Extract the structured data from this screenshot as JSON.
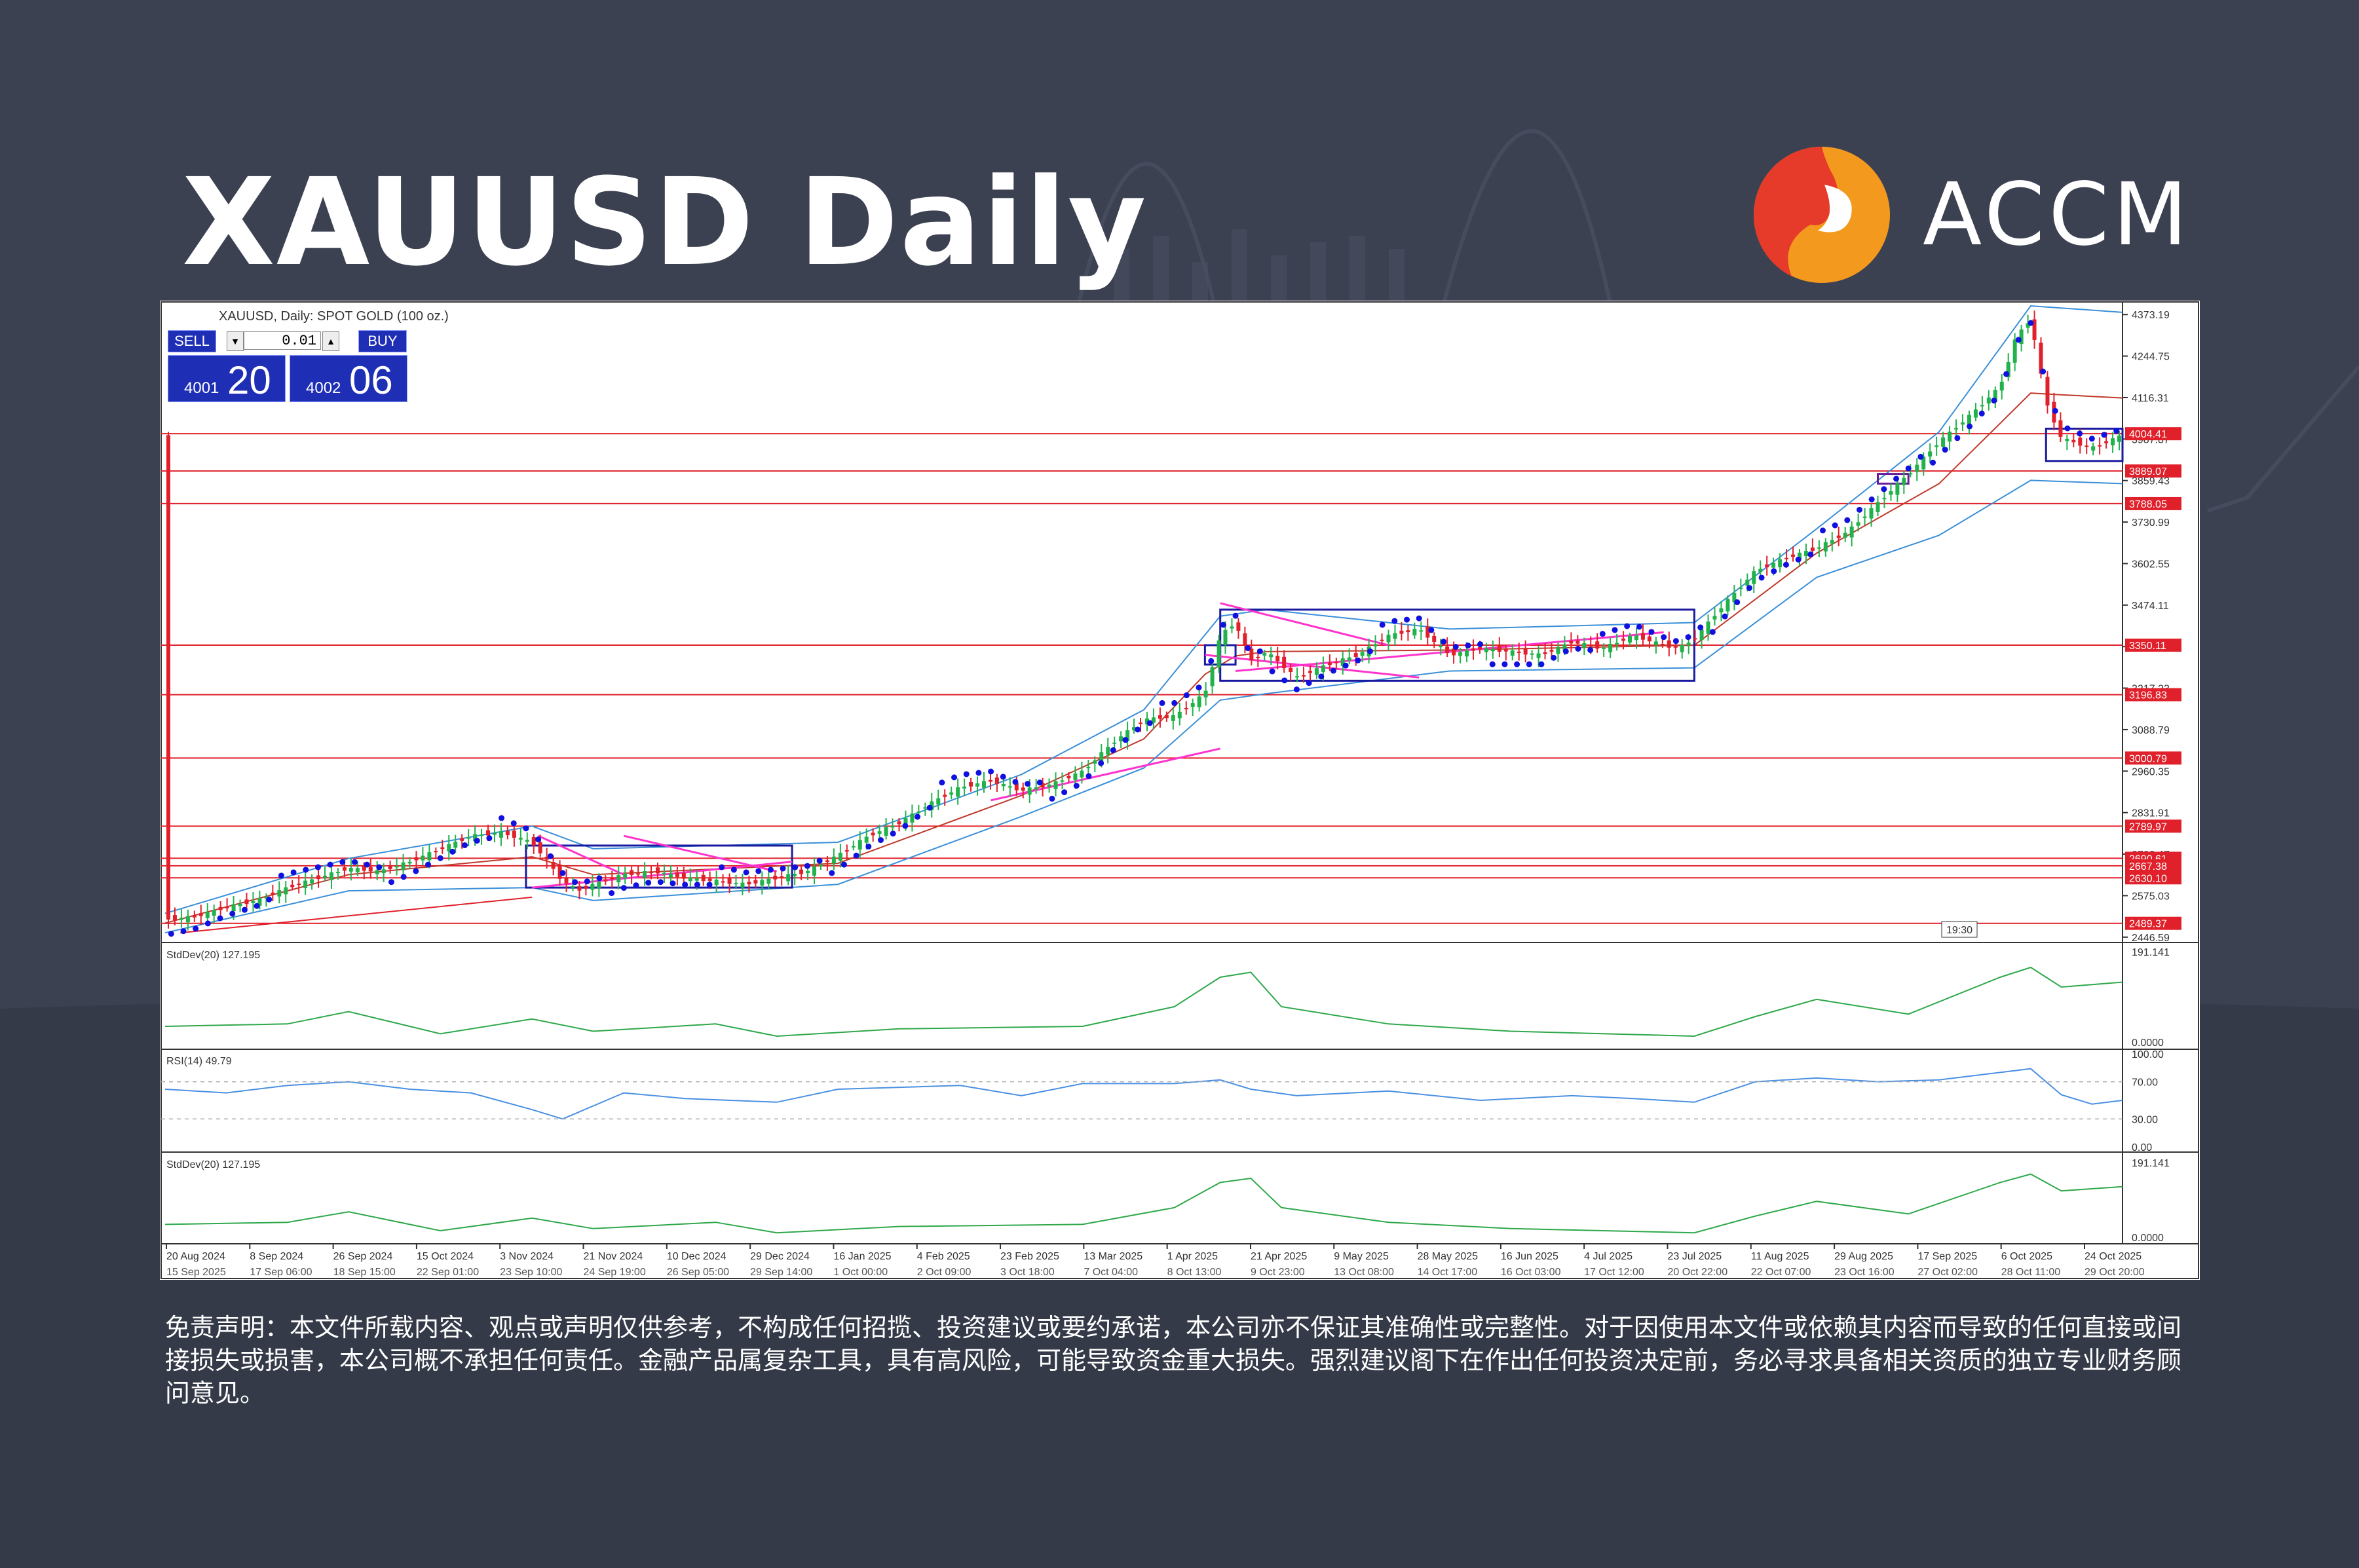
{
  "page": {
    "title": "XAUUSD Daily",
    "brand": "ACCM",
    "disclaimer": "免责声明：本文件所载内容、观点或声明仅供参考，不构成任何招揽、投资建议或要约承诺，本公司亦不保证其准确性或完整性。对于因使用本文件或依赖其内容而导致的任何直接或间接损失或损害，本公司概不承担任何责任。金融产品属复杂工具，具有高风险，可能导致资金重大损失。强烈建议阁下在作出任何投资决定前，务必寻求具备相关资质的独立专业财务顾问意见。"
  },
  "colors": {
    "background": "#3c4152",
    "logo_red": "#e63a2a",
    "logo_orange": "#f39a1e",
    "sell_buy_bg": "#1f2fb5",
    "level_line": "#e0202a",
    "bollinger": "#3a8fd9",
    "sar": "#1010e0",
    "trend_lines": "#ff33cc",
    "rsi": "#4a90e2",
    "stddev": "#2ea84a",
    "bull_candle": "#21b24b",
    "bear_candle": "#e0202a"
  },
  "trade_panel": {
    "symbol_header": "XAUUSD, Daily:  SPOT GOLD (100 oz.)",
    "sell_label": "SELL",
    "buy_label": "BUY",
    "lot": "0.01",
    "sell_price_main": "4001",
    "sell_price_big": "20",
    "buy_price_main": "4002",
    "buy_price_big": "06"
  },
  "chart_data": {
    "type": "candlestick",
    "title": "XAUUSD, Daily:  SPOT GOLD (100 oz.)",
    "ylim": [
      2430,
      4400
    ],
    "y_tick_labels": [
      "4373.19",
      "4244.75",
      "4116.31",
      "3987.87",
      "3859.43",
      "3730.99",
      "3602.55",
      "3474.11",
      "3345.67",
      "3217.23",
      "3088.79",
      "2960.35",
      "2831.91",
      "2703.47",
      "2575.03",
      "2446.59"
    ],
    "horizontal_levels": [
      4004.41,
      3889.07,
      3788.05,
      3350.11,
      3196.83,
      3000.79,
      2789.97,
      2690.61,
      2667.38,
      2630.1,
      2489.37
    ],
    "time_label": "19:30",
    "x_labels_top": [
      "20 Aug 2024",
      "8 Sep 2024",
      "26 Sep 2024",
      "15 Oct 2024",
      "3 Nov 2024",
      "21 Nov 2024",
      "10 Dec 2024",
      "29 Dec 2024",
      "16 Jan 2025",
      "4 Feb 2025",
      "23 Feb 2025",
      "13 Mar 2025",
      "1 Apr 2025",
      "21 Apr 2025",
      "9 May 2025",
      "28 May 2025",
      "16 Jun 2025",
      "4 Jul 2025",
      "23 Jul 2025",
      "11 Aug 2025",
      "29 Aug 2025",
      "17 Sep 2025",
      "6 Oct 2025",
      "24 Oct 2025"
    ],
    "x_labels_bottom": [
      "15 Sep 2025",
      "17 Sep 06:00",
      "18 Sep 15:00",
      "22 Sep 01:00",
      "23 Sep 10:00",
      "24 Sep 19:00",
      "26 Sep 05:00",
      "29 Sep 14:00",
      "1 Oct 00:00",
      "2 Oct 09:00",
      "3 Oct 18:00",
      "7 Oct 04:00",
      "8 Oct 13:00",
      "9 Oct 23:00",
      "13 Oct 08:00",
      "14 Oct 17:00",
      "16 Oct 03:00",
      "17 Oct 12:00",
      "20 Oct 22:00",
      "22 Oct 07:00",
      "23 Oct 16:00",
      "27 Oct 02:00",
      "28 Oct 11:00",
      "29 Oct 20:00"
    ],
    "close_path": [
      [
        0,
        2500
      ],
      [
        10,
        2510
      ],
      [
        20,
        2540
      ],
      [
        30,
        2560
      ],
      [
        40,
        2600
      ],
      [
        50,
        2630
      ],
      [
        60,
        2660
      ],
      [
        70,
        2650
      ],
      [
        80,
        2680
      ],
      [
        90,
        2720
      ],
      [
        100,
        2760
      ],
      [
        110,
        2770
      ],
      [
        120,
        2740
      ],
      [
        125,
        2680
      ],
      [
        130,
        2620
      ],
      [
        135,
        2590
      ],
      [
        140,
        2610
      ],
      [
        150,
        2640
      ],
      [
        160,
        2650
      ],
      [
        170,
        2630
      ],
      [
        180,
        2620
      ],
      [
        190,
        2610
      ],
      [
        200,
        2630
      ],
      [
        210,
        2650
      ],
      [
        220,
        2700
      ],
      [
        230,
        2760
      ],
      [
        240,
        2800
      ],
      [
        250,
        2860
      ],
      [
        260,
        2910
      ],
      [
        270,
        2930
      ],
      [
        280,
        2900
      ],
      [
        290,
        2920
      ],
      [
        300,
        2960
      ],
      [
        310,
        3050
      ],
      [
        320,
        3120
      ],
      [
        330,
        3130
      ],
      [
        340,
        3200
      ],
      [
        345,
        3380
      ],
      [
        350,
        3420
      ],
      [
        355,
        3300
      ],
      [
        360,
        3330
      ],
      [
        370,
        3250
      ],
      [
        380,
        3290
      ],
      [
        390,
        3320
      ],
      [
        400,
        3380
      ],
      [
        410,
        3400
      ],
      [
        420,
        3320
      ],
      [
        430,
        3340
      ],
      [
        440,
        3330
      ],
      [
        450,
        3320
      ],
      [
        460,
        3360
      ],
      [
        470,
        3340
      ],
      [
        480,
        3380
      ],
      [
        490,
        3350
      ],
      [
        495,
        3340
      ],
      [
        500,
        3370
      ],
      [
        510,
        3480
      ],
      [
        520,
        3580
      ],
      [
        530,
        3620
      ],
      [
        540,
        3650
      ],
      [
        550,
        3700
      ],
      [
        560,
        3790
      ],
      [
        570,
        3880
      ],
      [
        580,
        3980
      ],
      [
        590,
        4060
      ],
      [
        600,
        4150
      ],
      [
        605,
        4300
      ],
      [
        610,
        4360
      ],
      [
        615,
        4100
      ],
      [
        620,
        3990
      ],
      [
        630,
        3960
      ],
      [
        640,
        4000
      ]
    ],
    "x_domain": [
      0,
      640
    ],
    "bands": [
      {
        "name": "bollinger_upper",
        "values": [
          [
            0,
            2520
          ],
          [
            60,
            2690
          ],
          [
            120,
            2790
          ],
          [
            140,
            2720
          ],
          [
            220,
            2740
          ],
          [
            280,
            2950
          ],
          [
            320,
            3150
          ],
          [
            345,
            3440
          ],
          [
            360,
            3460
          ],
          [
            420,
            3400
          ],
          [
            500,
            3420
          ],
          [
            540,
            3710
          ],
          [
            580,
            4010
          ],
          [
            610,
            4400
          ],
          [
            640,
            4380
          ]
        ]
      },
      {
        "name": "bollinger_lower",
        "values": [
          [
            0,
            2460
          ],
          [
            60,
            2590
          ],
          [
            120,
            2600
          ],
          [
            140,
            2560
          ],
          [
            220,
            2610
          ],
          [
            280,
            2820
          ],
          [
            320,
            2970
          ],
          [
            345,
            3180
          ],
          [
            360,
            3200
          ],
          [
            420,
            3270
          ],
          [
            500,
            3280
          ],
          [
            540,
            3560
          ],
          [
            580,
            3690
          ],
          [
            610,
            3860
          ],
          [
            640,
            3850
          ]
        ]
      }
    ],
    "stddev_series": {
      "label": "StdDev(20) 127.195",
      "ylim": [
        0,
        200
      ],
      "tick_labels": [
        "191.141",
        "0.0000"
      ],
      "values": [
        [
          0,
          40
        ],
        [
          40,
          45
        ],
        [
          60,
          70
        ],
        [
          90,
          25
        ],
        [
          120,
          55
        ],
        [
          140,
          30
        ],
        [
          180,
          45
        ],
        [
          200,
          20
        ],
        [
          240,
          35
        ],
        [
          300,
          40
        ],
        [
          330,
          80
        ],
        [
          345,
          140
        ],
        [
          355,
          150
        ],
        [
          365,
          80
        ],
        [
          400,
          45
        ],
        [
          440,
          30
        ],
        [
          500,
          20
        ],
        [
          520,
          60
        ],
        [
          540,
          95
        ],
        [
          570,
          65
        ],
        [
          600,
          140
        ],
        [
          610,
          160
        ],
        [
          620,
          120
        ],
        [
          640,
          130
        ]
      ]
    },
    "rsi_series": {
      "label": "RSI(14) 49.79",
      "ylim": [
        0,
        100
      ],
      "tick_labels": [
        "100.00",
        "70.00",
        "30.00",
        "0.00"
      ],
      "values": [
        [
          0,
          62
        ],
        [
          20,
          58
        ],
        [
          40,
          66
        ],
        [
          60,
          70
        ],
        [
          80,
          62
        ],
        [
          100,
          58
        ],
        [
          120,
          40
        ],
        [
          130,
          30
        ],
        [
          150,
          58
        ],
        [
          170,
          52
        ],
        [
          200,
          48
        ],
        [
          220,
          62
        ],
        [
          260,
          66
        ],
        [
          280,
          55
        ],
        [
          300,
          68
        ],
        [
          330,
          68
        ],
        [
          345,
          72
        ],
        [
          355,
          62
        ],
        [
          370,
          55
        ],
        [
          400,
          60
        ],
        [
          430,
          50
        ],
        [
          460,
          55
        ],
        [
          480,
          52
        ],
        [
          500,
          48
        ],
        [
          520,
          70
        ],
        [
          540,
          74
        ],
        [
          560,
          70
        ],
        [
          580,
          72
        ],
        [
          600,
          80
        ],
        [
          610,
          84
        ],
        [
          620,
          56
        ],
        [
          630,
          46
        ],
        [
          640,
          50
        ]
      ]
    }
  }
}
